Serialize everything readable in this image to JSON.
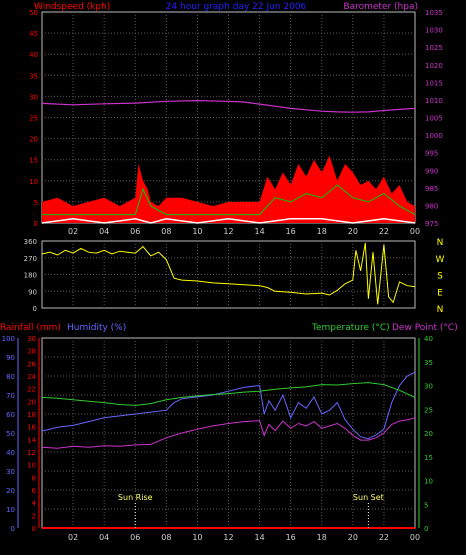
{
  "header": {
    "left_title": "Windspeed (kph)",
    "center_title": "24 hour graph day  22 Jun 2006",
    "right_title": "Barometer (hpa)"
  },
  "colors": {
    "wind_axis": "#ff0000",
    "baro_axis": "#cc33cc",
    "center_title": "#2222ff",
    "gust": "#ff0000",
    "avg": "#00cc00",
    "min": "#ffffff",
    "baro": "#cc33cc",
    "dir": "#ffff00",
    "rain": "#ff0000",
    "humidity_axis": "#6666ff",
    "humidity": "#6666ff",
    "temp": "#33cc33",
    "dew": "#cc33cc",
    "grid": "#5a5a5a",
    "axis_text": "#cfcfcf"
  },
  "panel3": {
    "rain_label": "Rainfall (mm)",
    "humidity_label": "Humidity (%)",
    "temp_label": "Temperature (°C)",
    "dew_label": "Dew Point (°C)",
    "sunrise_label": "Sun Rise",
    "sunset_label": "Sun Set"
  },
  "chart_data": [
    {
      "type": "line",
      "id": "wind_baro",
      "x_ticks": [
        "02",
        "04",
        "06",
        "08",
        "10",
        "12",
        "14",
        "16",
        "18",
        "20",
        "22",
        "00"
      ],
      "y_left_ticks": [
        0,
        5,
        10,
        15,
        20,
        25,
        30,
        35,
        40,
        45,
        50
      ],
      "y_left_range": [
        0,
        50
      ],
      "y_right_ticks": [
        975,
        980,
        985,
        990,
        995,
        1000,
        1005,
        1010,
        1015,
        1020,
        1025,
        1030,
        1035
      ],
      "y_right_range": [
        975,
        1035
      ],
      "series": [
        {
          "key": "gust",
          "x": [
            0,
            1,
            2,
            3,
            4,
            5,
            6,
            6.2,
            6.5,
            6.8,
            7,
            7.5,
            8,
            9,
            10,
            11,
            12,
            13,
            14,
            14.5,
            15,
            15.5,
            16,
            16.5,
            17,
            17.5,
            18,
            18.5,
            19,
            19.5,
            20,
            20.5,
            21,
            21.5,
            22,
            22.5,
            23,
            23.5,
            24
          ],
          "y": [
            5,
            6,
            4,
            5,
            6,
            4,
            6,
            14,
            10,
            8,
            5,
            4,
            6,
            6,
            5,
            4,
            5,
            5,
            5,
            11,
            8,
            12,
            9,
            14,
            11,
            15,
            12,
            16,
            10,
            14,
            12,
            9,
            10,
            8,
            11,
            7,
            9,
            5,
            4
          ]
        },
        {
          "key": "avg",
          "x": [
            0,
            2,
            4,
            6,
            6.5,
            7,
            8,
            10,
            12,
            14,
            15,
            16,
            17,
            18,
            19,
            20,
            21,
            22,
            23,
            24
          ],
          "y": [
            2,
            2,
            2,
            2,
            8,
            4,
            2,
            2,
            2,
            2,
            6,
            5,
            7,
            6,
            9,
            6,
            5,
            7,
            4,
            2
          ]
        },
        {
          "key": "min",
          "x": [
            0,
            2,
            4,
            6,
            7,
            8,
            10,
            12,
            14,
            16,
            18,
            20,
            22,
            24
          ],
          "y": [
            0,
            1,
            0,
            1,
            0,
            1,
            0,
            1,
            0,
            1,
            1,
            0,
            1,
            0
          ]
        },
        {
          "key": "baro",
          "x": [
            0,
            2,
            4,
            6,
            8,
            10,
            12,
            13,
            14,
            15,
            16,
            17,
            18,
            19,
            20,
            21,
            22,
            23,
            24
          ],
          "y": [
            1009.0,
            1008.6,
            1008.9,
            1009.1,
            1009.6,
            1009.8,
            1009.6,
            1009.4,
            1008.8,
            1008.2,
            1007.6,
            1007.2,
            1006.8,
            1006.6,
            1006.5,
            1006.6,
            1007.0,
            1007.3,
            1007.6
          ]
        }
      ]
    },
    {
      "type": "line",
      "id": "direction",
      "y_ticks": [
        360,
        270,
        180,
        90,
        0
      ],
      "y_range": [
        0,
        360
      ],
      "compass": [
        "N",
        "W",
        "S",
        "E",
        "N"
      ],
      "series": [
        {
          "key": "dir",
          "x": [
            0,
            0.5,
            1,
            1.5,
            2,
            2.5,
            3,
            3.5,
            4,
            4.5,
            5,
            5.5,
            6,
            6.5,
            7,
            7.5,
            8,
            8.5,
            9,
            10,
            11,
            12,
            13,
            14,
            14.5,
            15,
            16,
            17,
            18,
            18.5,
            19,
            19.5,
            20,
            20.2,
            20.5,
            20.8,
            21,
            21.3,
            21.6,
            22,
            22.3,
            22.6,
            23,
            23.5,
            24
          ],
          "y": [
            290,
            300,
            285,
            310,
            295,
            320,
            300,
            295,
            310,
            290,
            305,
            300,
            295,
            330,
            280,
            300,
            260,
            160,
            150,
            145,
            135,
            130,
            125,
            120,
            110,
            90,
            85,
            75,
            80,
            70,
            95,
            130,
            150,
            310,
            200,
            350,
            50,
            300,
            20,
            340,
            60,
            30,
            140,
            120,
            115
          ]
        }
      ]
    },
    {
      "type": "line",
      "id": "rain_hum_temp",
      "rain_ticks": [
        0,
        2,
        4,
        6,
        8,
        10,
        12,
        14,
        16,
        18,
        20,
        22,
        24,
        26,
        28,
        30
      ],
      "rain_range": [
        0,
        30
      ],
      "humidity_ticks": [
        0,
        10,
        20,
        30,
        40,
        50,
        60,
        70,
        80,
        90,
        100
      ],
      "humidity_range": [
        0,
        100
      ],
      "temp_ticks": [
        0,
        5,
        10,
        15,
        20,
        25,
        30,
        35,
        40
      ],
      "temp_range": [
        0,
        40
      ],
      "sunrise_hour": 6,
      "sunset_hour": 21,
      "series": [
        {
          "key": "rain",
          "x": [
            0,
            24
          ],
          "y": [
            0,
            0
          ]
        },
        {
          "key": "humidity",
          "x": [
            0,
            1,
            2,
            3,
            4,
            5,
            6,
            7,
            8,
            8.5,
            9,
            10,
            11,
            12,
            13,
            14,
            14.3,
            14.6,
            15,
            15.5,
            16,
            16.5,
            17,
            17.5,
            18,
            18.5,
            19,
            19.5,
            20,
            20.5,
            21,
            21.5,
            22,
            22.5,
            23,
            23.5,
            24
          ],
          "y": [
            51,
            53,
            54,
            56,
            58,
            59,
            60,
            61,
            62,
            66,
            68,
            69,
            70,
            72,
            74,
            75,
            60,
            67,
            62,
            70,
            58,
            66,
            63,
            69,
            60,
            62,
            66,
            57,
            52,
            48,
            47,
            49,
            52,
            66,
            75,
            80,
            82
          ]
        },
        {
          "key": "temp",
          "x": [
            0,
            1,
            2,
            3,
            4,
            5,
            6,
            7,
            8,
            9,
            10,
            11,
            12,
            13,
            14,
            15,
            16,
            17,
            18,
            19,
            20,
            21,
            22,
            23,
            24
          ],
          "y": [
            27.5,
            27.3,
            27.0,
            26.7,
            26.4,
            26.0,
            25.8,
            26.2,
            27.0,
            27.5,
            27.8,
            28.1,
            28.3,
            28.6,
            28.8,
            29.2,
            29.5,
            29.7,
            30.2,
            30.1,
            30.4,
            30.6,
            30.2,
            29.0,
            27.5
          ]
        },
        {
          "key": "dew",
          "x": [
            0,
            1,
            2,
            3,
            4,
            5,
            6,
            7,
            8,
            9,
            10,
            11,
            12,
            13,
            14,
            14.3,
            14.6,
            15,
            15.5,
            16,
            16.5,
            17,
            17.5,
            18,
            18.5,
            19,
            19.5,
            20,
            20.5,
            21,
            21.5,
            22,
            22.5,
            23,
            23.5,
            24
          ],
          "y": [
            17.0,
            16.8,
            17.2,
            17.0,
            17.3,
            17.2,
            17.5,
            17.6,
            19.0,
            20.0,
            20.8,
            21.5,
            22.0,
            22.4,
            22.6,
            19.5,
            21.8,
            20.5,
            22.5,
            21.0,
            22.0,
            21.5,
            22.4,
            21.0,
            21.5,
            22.0,
            21.0,
            19.5,
            18.5,
            18.5,
            19.0,
            20.0,
            21.8,
            22.5,
            22.8,
            23.2
          ]
        }
      ]
    }
  ]
}
